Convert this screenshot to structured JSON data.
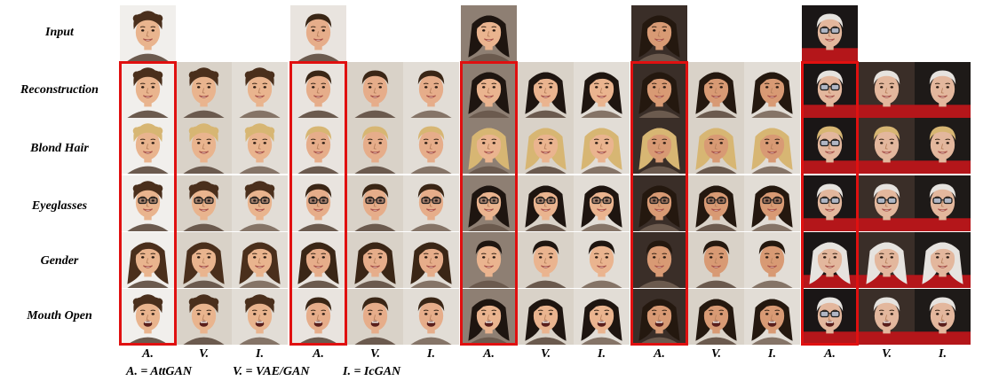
{
  "rows": [
    {
      "label": "Input"
    },
    {
      "label": "Reconstruction"
    },
    {
      "label": "Blond Hair"
    },
    {
      "label": "Eyeglasses"
    },
    {
      "label": "Gender"
    },
    {
      "label": "Mouth Open"
    }
  ],
  "column_labels": [
    "A.",
    "V.",
    "I.",
    "A.",
    "V.",
    "I.",
    "A.",
    "V.",
    "I.",
    "A.",
    "V.",
    "I.",
    "A.",
    "V.",
    "I."
  ],
  "legend": {
    "attgan": "A. = AttGAN",
    "vaegan": "V. = VAE/GAN",
    "icgan": "I. = IcGAN"
  },
  "colors": {
    "highlight": "#e01010"
  }
}
